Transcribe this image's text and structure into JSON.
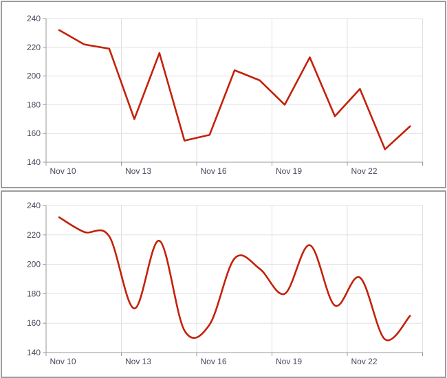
{
  "style": {
    "background": "#ffffff",
    "panel_border": "#9c9c9c",
    "grid_color": "#e0e0e0",
    "axis_color": "#999999",
    "tick_color": "#999999",
    "label_color": "#47495c",
    "line_color": "#c42109"
  },
  "chart_data": [
    {
      "name": "straight-line-chart",
      "type": "line",
      "title": "",
      "xlabel": "",
      "ylabel": "",
      "categories": [
        "Nov 10",
        "Nov 11",
        "Nov 12",
        "Nov 13",
        "Nov 14",
        "Nov 15",
        "Nov 16",
        "Nov 17",
        "Nov 18",
        "Nov 19",
        "Nov 20",
        "Nov 21",
        "Nov 22",
        "Nov 23",
        "Nov 24"
      ],
      "values": [
        232,
        222,
        219,
        170,
        216,
        155,
        159,
        204,
        197,
        180,
        213,
        172,
        191,
        149,
        165
      ],
      "x_tick_labels": [
        "Nov 10",
        "Nov 13",
        "Nov 16",
        "Nov 19",
        "Nov 22"
      ],
      "y_ticks": [
        140,
        160,
        180,
        200,
        220,
        240
      ],
      "ylim": [
        140,
        240
      ],
      "grid": true,
      "legend": false,
      "line_color": "#c42109"
    },
    {
      "name": "spline-chart",
      "type": "spline",
      "title": "",
      "xlabel": "",
      "ylabel": "",
      "categories": [
        "Nov 10",
        "Nov 11",
        "Nov 12",
        "Nov 13",
        "Nov 14",
        "Nov 15",
        "Nov 16",
        "Nov 17",
        "Nov 18",
        "Nov 19",
        "Nov 20",
        "Nov 21",
        "Nov 22",
        "Nov 23",
        "Nov 24"
      ],
      "values": [
        232,
        222,
        219,
        170,
        216,
        155,
        159,
        204,
        197,
        180,
        213,
        172,
        191,
        149,
        165
      ],
      "x_tick_labels": [
        "Nov 10",
        "Nov 13",
        "Nov 16",
        "Nov 19",
        "Nov 22"
      ],
      "y_ticks": [
        140,
        160,
        180,
        200,
        220,
        240
      ],
      "ylim": [
        140,
        240
      ],
      "grid": true,
      "legend": false,
      "line_color": "#c42109"
    }
  ]
}
